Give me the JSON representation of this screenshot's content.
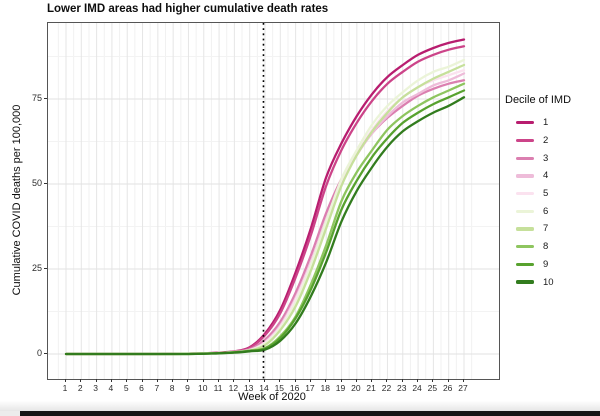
{
  "title": "Lower IMD areas had higher cumulative death rates",
  "x_axis": {
    "label": "Week of 2020",
    "ticks": [
      1,
      2,
      3,
      4,
      5,
      6,
      7,
      8,
      9,
      10,
      11,
      12,
      13,
      14,
      15,
      16,
      17,
      18,
      19,
      20,
      21,
      22,
      23,
      24,
      25,
      26,
      27
    ]
  },
  "y_axis": {
    "label": "Cumulative COVID deaths per 100,000",
    "ticks": [
      0,
      25,
      50,
      75
    ]
  },
  "legend": {
    "title": "Decile of IMD",
    "items": [
      {
        "label": "1",
        "color": "#b81d6f"
      },
      {
        "label": "2",
        "color": "#cc4489"
      },
      {
        "label": "3",
        "color": "#db7fb0"
      },
      {
        "label": "4",
        "color": "#eebcd9"
      },
      {
        "label": "5",
        "color": "#fbe2ef"
      },
      {
        "label": "6",
        "color": "#ebf4d8"
      },
      {
        "label": "7",
        "color": "#c6e09b"
      },
      {
        "label": "8",
        "color": "#8ec55f"
      },
      {
        "label": "9",
        "color": "#58a22f"
      },
      {
        "label": "10",
        "color": "#327c1e"
      }
    ]
  },
  "chart_data": {
    "type": "line",
    "title": "Lower IMD areas had higher cumulative death rates",
    "xlabel": "Week of 2020",
    "ylabel": "Cumulative COVID deaths per 100,000",
    "x": [
      1,
      2,
      3,
      4,
      5,
      6,
      7,
      8,
      9,
      10,
      11,
      12,
      13,
      14,
      15,
      16,
      17,
      18,
      19,
      20,
      21,
      22,
      23,
      24,
      25,
      26,
      27
    ],
    "xlim": [
      1,
      27
    ],
    "ylim": [
      0,
      97
    ],
    "grid": true,
    "legend_position": "right",
    "annotations": [
      {
        "type": "vline",
        "x": 13.9,
        "style": "dotted",
        "color": "#000000"
      }
    ],
    "series": [
      {
        "name": "Decile 1",
        "color": "#b81d6f",
        "values": [
          0,
          0,
          0,
          0,
          0,
          0,
          0,
          0.1,
          0.1,
          0.2,
          0.4,
          0.8,
          2,
          6,
          13,
          24,
          37,
          52,
          62,
          70,
          76.5,
          81.5,
          85,
          88,
          90,
          91.5,
          92.5
        ]
      },
      {
        "name": "Decile 2",
        "color": "#cc4489",
        "values": [
          0,
          0,
          0,
          0,
          0,
          0,
          0,
          0.1,
          0.1,
          0.2,
          0.4,
          0.7,
          1.8,
          5.5,
          12,
          22.5,
          35,
          49.5,
          60,
          68,
          74.5,
          79.5,
          83,
          86,
          88,
          89.5,
          90.5
        ]
      },
      {
        "name": "Decile 3",
        "color": "#db7fb0",
        "values": [
          0,
          0,
          0,
          0,
          0,
          0,
          0,
          0,
          0.1,
          0.2,
          0.3,
          0.7,
          1.4,
          4.2,
          9.5,
          18,
          29,
          41.5,
          51.5,
          59,
          65,
          69.5,
          73,
          76,
          78,
          79.5,
          80.5
        ]
      },
      {
        "name": "Decile 4",
        "color": "#eebcd9",
        "values": [
          0,
          0,
          0,
          0,
          0,
          0,
          0,
          0,
          0.1,
          0.2,
          0.3,
          0.6,
          1.2,
          3.5,
          8.4,
          16.5,
          27,
          39.5,
          50.5,
          58.5,
          65,
          70,
          74,
          76.5,
          79,
          80.5,
          82.5
        ]
      },
      {
        "name": "Decile 5",
        "color": "#fbe2ef",
        "values": [
          0,
          0,
          0,
          0,
          0,
          0,
          0,
          0,
          0.1,
          0.2,
          0.3,
          0.6,
          1.1,
          3.3,
          8,
          16,
          26.5,
          39,
          51,
          59,
          66,
          71.5,
          75.5,
          78.5,
          80.5,
          82,
          83.5
        ]
      },
      {
        "name": "Decile 6",
        "color": "#ebf4d8",
        "values": [
          0,
          0,
          0,
          0,
          0,
          0,
          0,
          0,
          0.1,
          0.2,
          0.3,
          0.6,
          1.1,
          3,
          7.6,
          15,
          26,
          39,
          51.5,
          60,
          67.5,
          73,
          77,
          80.5,
          83,
          84.5,
          86.5
        ]
      },
      {
        "name": "Decile 7",
        "color": "#c6e09b",
        "values": [
          0,
          0,
          0,
          0,
          0,
          0,
          0,
          0,
          0.1,
          0.2,
          0.3,
          0.5,
          1,
          2.6,
          7,
          14,
          24.5,
          37,
          49.5,
          58.5,
          65.5,
          71,
          75.5,
          78.5,
          81,
          83,
          85
        ]
      },
      {
        "name": "Decile 8",
        "color": "#8ec55f",
        "values": [
          0,
          0,
          0,
          0,
          0,
          0,
          0,
          0,
          0,
          0.1,
          0.3,
          0.5,
          1,
          1.7,
          5.2,
          11,
          20.5,
          32,
          45,
          53.5,
          60,
          66,
          70,
          73,
          75.5,
          77.5,
          79.5
        ]
      },
      {
        "name": "Decile 9",
        "color": "#58a22f",
        "values": [
          0,
          0,
          0,
          0,
          0,
          0,
          0,
          0,
          0,
          0.1,
          0.2,
          0.5,
          0.9,
          1.6,
          4.7,
          10.5,
          19,
          30,
          42.5,
          51,
          58,
          63.5,
          68,
          71,
          73.5,
          75.5,
          77.5
        ]
      },
      {
        "name": "Decile 10",
        "color": "#327c1e",
        "values": [
          0,
          0,
          0,
          0,
          0,
          0,
          0,
          0,
          0,
          0.1,
          0.2,
          0.4,
          0.8,
          1.3,
          3.9,
          9,
          17,
          27,
          39,
          48,
          55,
          61,
          65.5,
          68.5,
          71,
          73,
          75.5
        ]
      }
    ]
  }
}
